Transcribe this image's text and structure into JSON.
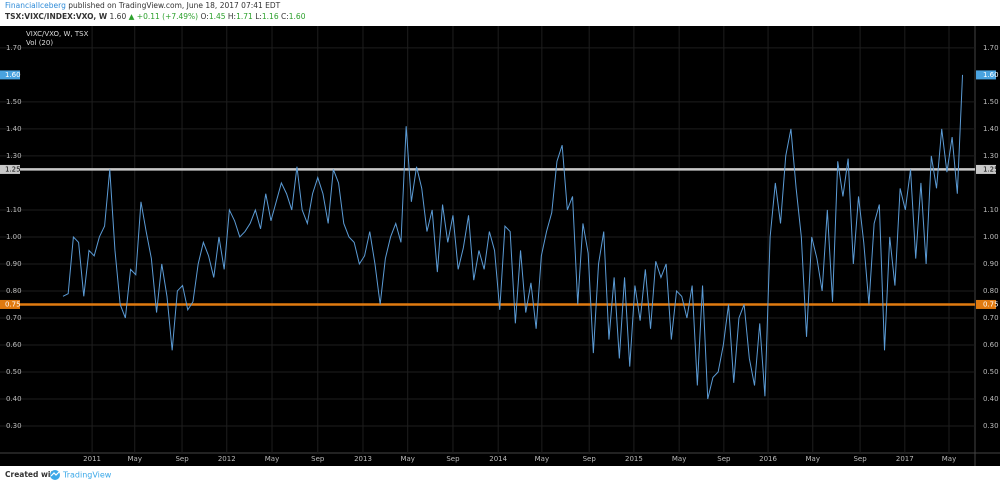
{
  "header": {
    "author": "FinancialIceberg",
    "published": "published on TradingView.com, June 18, 2017 07:41 EDT",
    "symbol": "TSX:VIXC/INDEX:VXO, W",
    "price": "1.60",
    "change": "+0.11 (+7.49%)",
    "ohlc": [
      {
        "label": "O:",
        "value": "1.45"
      },
      {
        "label": "H:",
        "value": "1.71"
      },
      {
        "label": "L:",
        "value": "1.16"
      },
      {
        "label": "C:",
        "value": "1.60"
      }
    ]
  },
  "chart_data": {
    "type": "line",
    "title": "VIXC/VXO, W, TSX",
    "subtitle": "Vol (20)",
    "color": "#5b9bd5",
    "grid": true,
    "values": [
      0.78,
      0.79,
      1.0,
      0.98,
      0.78,
      0.95,
      0.93,
      1.0,
      1.04,
      1.25,
      0.95,
      0.75,
      0.7,
      0.88,
      0.86,
      1.13,
      1.02,
      0.92,
      0.72,
      0.9,
      0.78,
      0.58,
      0.8,
      0.82,
      0.73,
      0.76,
      0.9,
      0.98,
      0.93,
      0.85,
      1.0,
      0.88,
      1.1,
      1.06,
      1.0,
      1.02,
      1.05,
      1.1,
      1.03,
      1.16,
      1.06,
      1.13,
      1.2,
      1.16,
      1.1,
      1.26,
      1.1,
      1.05,
      1.16,
      1.22,
      1.16,
      1.05,
      1.25,
      1.2,
      1.05,
      1.0,
      0.98,
      0.9,
      0.93,
      1.02,
      0.9,
      0.75,
      0.92,
      1.0,
      1.05,
      0.98,
      1.41,
      1.13,
      1.26,
      1.18,
      1.02,
      1.1,
      0.87,
      1.12,
      0.98,
      1.08,
      0.88,
      0.96,
      1.08,
      0.84,
      0.95,
      0.88,
      1.02,
      0.95,
      0.73,
      1.04,
      1.02,
      0.68,
      0.95,
      0.72,
      0.83,
      0.66,
      0.93,
      1.02,
      1.09,
      1.28,
      1.34,
      1.1,
      1.15,
      0.75,
      1.05,
      0.94,
      0.57,
      0.9,
      1.02,
      0.62,
      0.85,
      0.55,
      0.85,
      0.52,
      0.82,
      0.69,
      0.88,
      0.66,
      0.91,
      0.85,
      0.9,
      0.62,
      0.8,
      0.78,
      0.7,
      0.82,
      0.45,
      0.82,
      0.4,
      0.48,
      0.5,
      0.6,
      0.75,
      0.46,
      0.7,
      0.75,
      0.55,
      0.45,
      0.68,
      0.41,
      1.0,
      1.2,
      1.05,
      1.3,
      1.4,
      1.18,
      1.0,
      0.63,
      1.0,
      0.92,
      0.8,
      1.1,
      0.76,
      1.28,
      1.15,
      1.29,
      0.9,
      1.15,
      0.98,
      0.75,
      1.05,
      1.12,
      0.58,
      1.0,
      0.82,
      1.18,
      1.1,
      1.25,
      0.92,
      1.2,
      0.9,
      1.3,
      1.18,
      1.4,
      1.24,
      1.37,
      1.16,
      1.6
    ],
    "xlim": [
      -8.65,
      175.4
    ],
    "xticks": [
      {
        "value": 5.6,
        "label": "2011"
      },
      {
        "value": 13.8,
        "label": "May"
      },
      {
        "value": 22.9,
        "label": "Sep"
      },
      {
        "value": 31.5,
        "label": "2012"
      },
      {
        "value": 40.2,
        "label": "May"
      },
      {
        "value": 49,
        "label": "Sep"
      },
      {
        "value": 57.7,
        "label": "2013"
      },
      {
        "value": 66.3,
        "label": "May"
      },
      {
        "value": 75,
        "label": "Sep"
      },
      {
        "value": 83.7,
        "label": "2014"
      },
      {
        "value": 92.1,
        "label": "May"
      },
      {
        "value": 101.2,
        "label": "Sep"
      },
      {
        "value": 109.8,
        "label": "2015"
      },
      {
        "value": 118.5,
        "label": "May"
      },
      {
        "value": 127.1,
        "label": "Sep"
      },
      {
        "value": 135.6,
        "label": "2016"
      },
      {
        "value": 144.2,
        "label": "May"
      },
      {
        "value": 153.3,
        "label": "Sep"
      },
      {
        "value": 161.9,
        "label": "2017"
      },
      {
        "value": 170.4,
        "label": "May"
      }
    ],
    "ylim": [
      0.2,
      1.77
    ],
    "yticks": [
      {
        "value": 0.3,
        "label": "0.30"
      },
      {
        "value": 0.4,
        "label": "0.40"
      },
      {
        "value": 0.5,
        "label": "0.50"
      },
      {
        "value": 0.6,
        "label": "0.60"
      },
      {
        "value": 0.7,
        "label": "0.70"
      },
      {
        "value": 0.8,
        "label": "0.80"
      },
      {
        "value": 0.9,
        "label": "0.90"
      },
      {
        "value": 1.0,
        "label": "1.00"
      },
      {
        "value": 1.1,
        "label": "1.10"
      },
      {
        "value": 1.3,
        "label": "1.30"
      },
      {
        "value": 1.4,
        "label": "1.40"
      },
      {
        "value": 1.5,
        "label": "1.50"
      },
      {
        "value": 1.7,
        "label": "1.70"
      }
    ],
    "hlines": [
      {
        "value": 1.25,
        "color": "#c8c8c8"
      },
      {
        "value": 0.75,
        "color": "#e07a10"
      }
    ],
    "last_value": {
      "value": 1.6,
      "label": "1.60",
      "color": "#4aa3df"
    }
  },
  "footer": {
    "created": "Created with",
    "brand": "TradingView"
  }
}
